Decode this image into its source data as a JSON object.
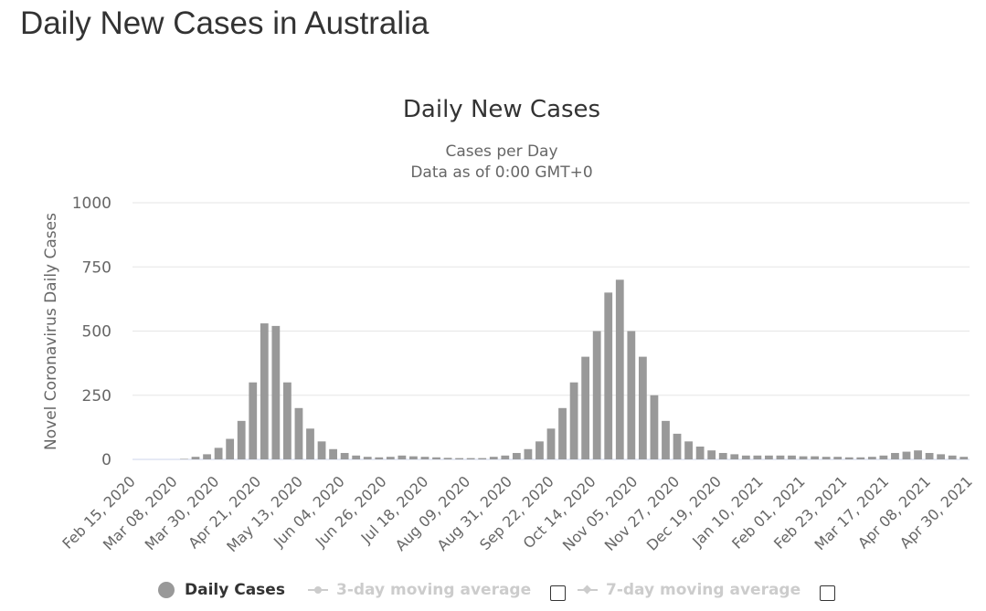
{
  "page": {
    "heading": "Daily New Cases in Australia"
  },
  "chart_data": {
    "type": "bar",
    "title": "Daily New Cases",
    "subtitle_lines": [
      "Cases per Day",
      "Data as of 0:00 GMT+0"
    ],
    "ylabel": "Novel Coronavirus Daily Cases",
    "xlabel": "",
    "ylim": [
      0,
      1000
    ],
    "y_ticks": [
      "0",
      "250",
      "500",
      "750",
      "1000"
    ],
    "x_tick_labels": [
      "Feb 15, 2020",
      "Mar 08, 2020",
      "Mar 30, 2020",
      "Apr 21, 2020",
      "May 13, 2020",
      "Jun 04, 2020",
      "Jun 26, 2020",
      "Jul 18, 2020",
      "Aug 09, 2020",
      "Aug 31, 2020",
      "Sep 22, 2020",
      "Oct 14, 2020",
      "Nov 05, 2020",
      "Nov 27, 2020",
      "Dec 19, 2020",
      "Jan 10, 2021",
      "Feb 01, 2021",
      "Feb 23, 2021",
      "Mar 17, 2021",
      "Apr 08, 2021",
      "Apr 30, 2021"
    ],
    "x_start": "Feb 15, 2020",
    "step_days": 6,
    "series": [
      {
        "name": "Daily Cases",
        "color": "#999999",
        "values": [
          0,
          0,
          0,
          0,
          2,
          10,
          20,
          45,
          80,
          150,
          300,
          530,
          520,
          300,
          200,
          120,
          70,
          40,
          25,
          15,
          10,
          8,
          10,
          15,
          12,
          10,
          8,
          6,
          5,
          5,
          5,
          10,
          15,
          25,
          40,
          70,
          120,
          200,
          300,
          400,
          500,
          650,
          700,
          500,
          400,
          250,
          150,
          100,
          70,
          50,
          35,
          25,
          20,
          15,
          15,
          15,
          15,
          15,
          12,
          12,
          10,
          10,
          8,
          8,
          10,
          15,
          25,
          30,
          35,
          25,
          20,
          15,
          10
        ]
      },
      {
        "name": "3-day moving average",
        "visible": false
      },
      {
        "name": "7-day moving average",
        "visible": false
      }
    ],
    "grid": true,
    "legend_position": "bottom-center"
  },
  "colors": {
    "bar": "#999999",
    "grid": "#e6e6e6",
    "axis_text": "#666666",
    "title": "#333333",
    "legend_inactive": "#cccccc"
  }
}
